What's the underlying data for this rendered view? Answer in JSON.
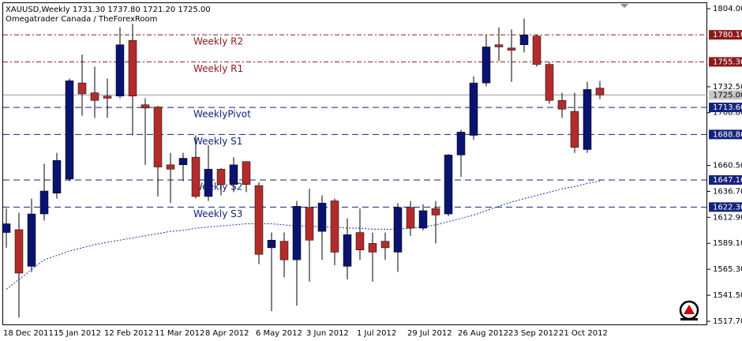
{
  "chart_data": {
    "type": "candlestick",
    "title": "XAUUSD,Weekly  1731.30 1737.80 1721.20 1725.00",
    "subtitle": "Omegatrader Canada / TheForexRoom",
    "categories": [
      "18 Dec 2011",
      null,
      null,
      null,
      "15 Jan 2012",
      null,
      null,
      null,
      "12 Feb 2012",
      null,
      null,
      null,
      "11 Mar 2012",
      null,
      null,
      null,
      "8 Apr 2012",
      null,
      null,
      null,
      "6 May 2012",
      null,
      null,
      null,
      "3 Jun 2012",
      null,
      null,
      null,
      "1 Jul 2012",
      null,
      null,
      null,
      "29 Jul 2012",
      null,
      null,
      null,
      "26 Aug 2012",
      null,
      null,
      null,
      "23 Sep 2012",
      null,
      null,
      null,
      "21 Oct 2012",
      null,
      null,
      null
    ],
    "open": [
      1599,
      1601.6,
      1568,
      1616,
      1635,
      1648,
      1736,
      1727,
      1724,
      1724,
      1775,
      1716,
      1714,
      1661,
      1661,
      1668,
      1632,
      1657,
      1643,
      1664,
      1642,
      1585,
      1591,
      1574,
      1622,
      1600,
      1628,
      1568,
      1599,
      1589,
      1591,
      1581,
      1622,
      1603,
      1621,
      1616,
      1670,
      1688,
      1736,
      1771,
      1768,
      1771,
      1779,
      1753,
      1720,
      1710,
      1675,
      1731.3
    ],
    "high": [
      1621,
      1617,
      1630,
      1662,
      1672,
      1740,
      1762,
      1751,
      1740,
      1787,
      1790,
      1722,
      1715,
      1672,
      1672,
      1688,
      1679,
      1658,
      1668,
      1664,
      1645,
      1599,
      1599,
      1628,
      1639,
      1633,
      1630,
      1612,
      1621,
      1599,
      1599,
      1626,
      1628,
      1625,
      1628,
      1671,
      1693,
      1742,
      1780,
      1787,
      1785,
      1795,
      1780,
      1755,
      1727,
      1727,
      1737,
      1737.8
    ],
    "low": [
      1585,
      1521,
      1563,
      1610,
      1630,
      1646,
      1706,
      1704,
      1704,
      1722,
      1688,
      1661,
      1632,
      1626,
      1646,
      1630,
      1628,
      1633,
      1636,
      1636,
      1570,
      1527,
      1558,
      1532,
      1554,
      1574,
      1569,
      1556,
      1574,
      1554,
      1574,
      1563,
      1596,
      1601,
      1589,
      1614,
      1650,
      1684,
      1733,
      1756,
      1737,
      1764,
      1751,
      1717,
      1704,
      1672,
      1672,
      1721.2
    ],
    "close": [
      1607,
      1561.8,
      1616,
      1637,
      1665,
      1738,
      1726,
      1720,
      1722,
      1771,
      1724,
      1713,
      1659,
      1657,
      1667,
      1632,
      1657,
      1643,
      1661,
      1643,
      1579,
      1592,
      1574,
      1623,
      1592,
      1626,
      1581,
      1597,
      1583,
      1581,
      1585,
      1622,
      1603,
      1619,
      1615,
      1670,
      1691,
      1736,
      1769,
      1769,
      1766,
      1780,
      1753,
      1720,
      1712,
      1677,
      1730,
      1725.0
    ],
    "ma": [
      1547,
      1556,
      1565,
      1574,
      1578,
      1582,
      1585,
      1588,
      1590,
      1592,
      1594,
      1596,
      1598,
      1600,
      1601,
      1603,
      1604,
      1605,
      1606,
      1607,
      1607,
      1607,
      1606,
      1605,
      1605,
      1604,
      1604,
      1603,
      1603,
      1602,
      1602,
      1602,
      1603,
      1604,
      1606,
      1609,
      1612,
      1615,
      1619,
      1623,
      1627,
      1630,
      1633,
      1636,
      1639,
      1641,
      1644,
      1646
    ],
    "ma_color": "#1f2fb0",
    "up_color": "#0a1470",
    "down_color": "#b22c2c",
    "ylim": [
      1514.8,
      1809.1
    ],
    "yticks": [
      {
        "value": 1804,
        "label": "1804.00"
      },
      {
        "value": 1732.5,
        "label": "1732.50"
      },
      {
        "value": 1708.8,
        "label": "1708.80"
      },
      {
        "value": 1660.5,
        "label": "1660.50"
      },
      {
        "value": 1636.7,
        "label": "1636.70"
      },
      {
        "value": 1612.9,
        "label": "1612.90"
      },
      {
        "value": 1589.1,
        "label": "1589.10"
      },
      {
        "value": 1565.3,
        "label": "1565.30"
      },
      {
        "value": 1541.5,
        "label": "1541.50"
      },
      {
        "value": 1517.7,
        "label": "1517.70"
      }
    ],
    "levels": [
      {
        "name": "Weekly R2",
        "value": 1780.1,
        "label": "1780.10",
        "color": "#8b1a1a"
      },
      {
        "name": "Weekly R1",
        "value": 1755.3,
        "label": "1755.30",
        "color": "#8b1a1a"
      },
      {
        "name": "WeeklyPivot",
        "value": 1713.6,
        "label": "1713.60",
        "color": "#14237a"
      },
      {
        "name": "Weekly S1",
        "value": 1688.8,
        "label": "1688.80",
        "color": "#14237a"
      },
      {
        "name": "Weekly S2",
        "value": 1647.1,
        "label": "1647.10",
        "color": "#14237a"
      },
      {
        "name": "Weekly S3",
        "value": 1622.3,
        "label": "1622.30",
        "color": "#14237a"
      }
    ],
    "last_price": {
      "value": 1725.0,
      "label": "1725.00"
    }
  }
}
